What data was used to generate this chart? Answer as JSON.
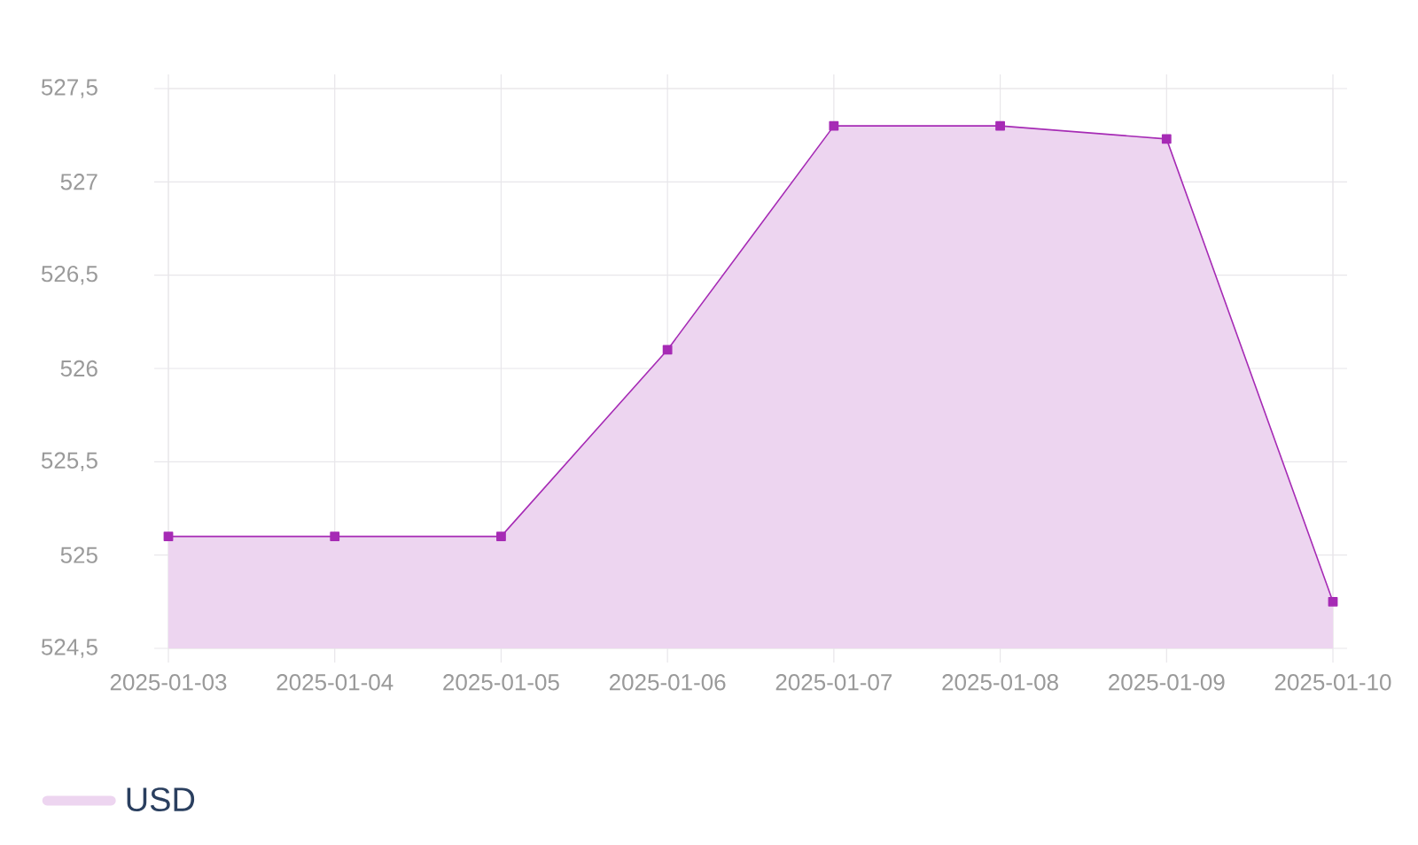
{
  "chart_data": {
    "type": "area",
    "categories": [
      "2025-01-03",
      "2025-01-04",
      "2025-01-05",
      "2025-01-06",
      "2025-01-07",
      "2025-01-08",
      "2025-01-09",
      "2025-01-10"
    ],
    "series": [
      {
        "name": "USD",
        "color": "#a62bb5",
        "values": [
          525.1,
          525.1,
          525.1,
          526.1,
          527.3,
          527.3,
          527.23,
          524.75
        ]
      }
    ],
    "ylim": [
      524.5,
      527.5
    ],
    "yticks": [
      {
        "value": 524.5,
        "label": "524,5"
      },
      525,
      {
        "value": 525.5,
        "label": "525,5"
      },
      526,
      {
        "value": 526.5,
        "label": "526,5"
      },
      527,
      {
        "value": 527.5,
        "label": "527,5"
      }
    ],
    "grid": true,
    "legend": "bottom left",
    "marker": "square"
  }
}
